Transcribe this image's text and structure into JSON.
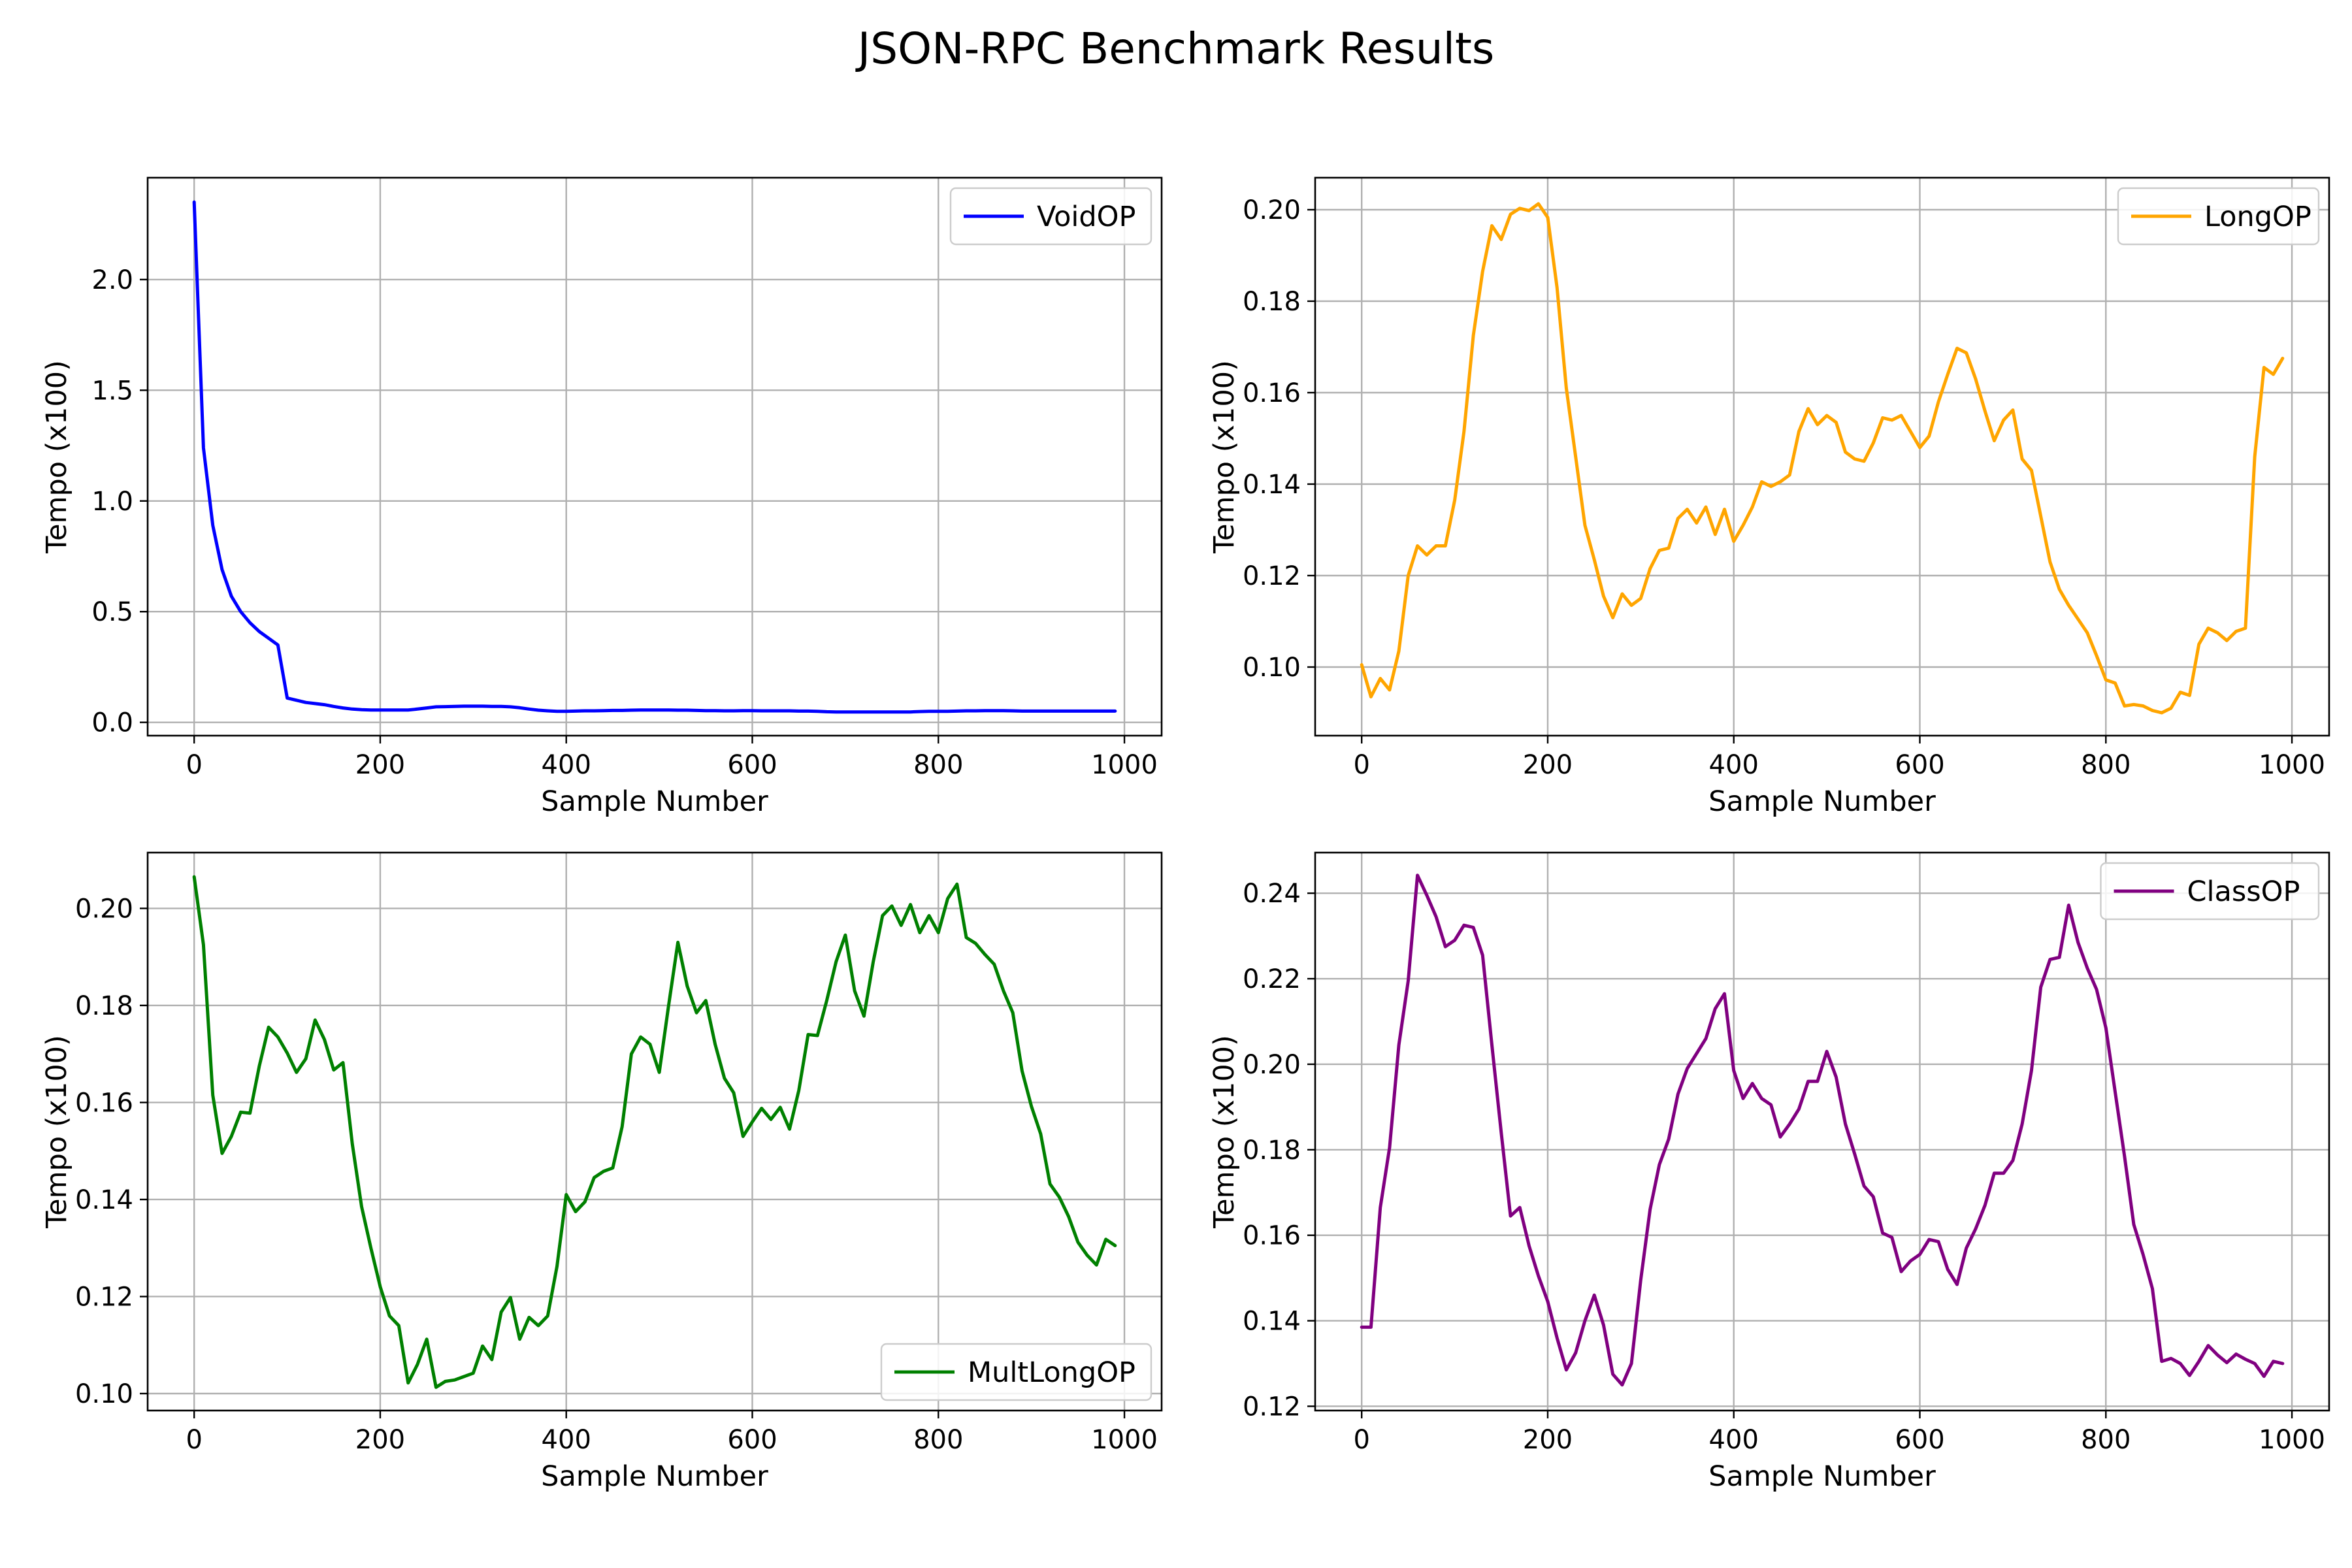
{
  "title": "JSON-RPC Benchmark Results",
  "chart_data": [
    {
      "type": "line",
      "xlabel": "Sample Number",
      "ylabel": "Tempo (x100)",
      "xlim": [
        -50,
        1040
      ],
      "ylim": [
        -0.06,
        2.46
      ],
      "xticks": [
        0,
        200,
        400,
        600,
        800,
        1000
      ],
      "yticks": [
        0.0,
        0.5,
        1.0,
        1.5,
        2.0
      ],
      "ytick_labels": [
        "0.0",
        "0.5",
        "1.0",
        "1.5",
        "2.0"
      ],
      "grid": true,
      "legend": "upper-right",
      "series": [
        {
          "name": "VoidOP",
          "color": "#0000ff",
          "x": [
            0,
            10,
            20,
            30,
            40,
            50,
            60,
            70,
            80,
            90,
            100,
            110,
            120,
            130,
            140,
            150,
            160,
            170,
            180,
            190,
            200,
            210,
            220,
            230,
            240,
            250,
            260,
            270,
            280,
            290,
            300,
            310,
            320,
            330,
            340,
            350,
            360,
            370,
            380,
            390,
            400,
            410,
            420,
            430,
            440,
            450,
            460,
            470,
            480,
            490,
            500,
            510,
            520,
            530,
            540,
            550,
            560,
            570,
            580,
            590,
            600,
            610,
            620,
            630,
            640,
            650,
            660,
            670,
            680,
            690,
            700,
            710,
            720,
            730,
            740,
            750,
            760,
            770,
            780,
            790,
            800,
            810,
            820,
            830,
            840,
            850,
            860,
            870,
            880,
            890,
            900,
            910,
            920,
            930,
            940,
            950,
            960,
            970,
            980,
            990
          ],
          "y": [
            2.35,
            1.24,
            0.89,
            0.69,
            0.57,
            0.5,
            0.45,
            0.41,
            0.38,
            0.35,
            0.11,
            0.1,
            0.09,
            0.085,
            0.08,
            0.072,
            0.065,
            0.06,
            0.057,
            0.056,
            0.056,
            0.056,
            0.056,
            0.056,
            0.06,
            0.065,
            0.07,
            0.071,
            0.072,
            0.073,
            0.073,
            0.073,
            0.072,
            0.072,
            0.07,
            0.066,
            0.06,
            0.055,
            0.052,
            0.05,
            0.05,
            0.051,
            0.052,
            0.052,
            0.053,
            0.054,
            0.054,
            0.055,
            0.056,
            0.056,
            0.056,
            0.056,
            0.055,
            0.055,
            0.054,
            0.053,
            0.053,
            0.052,
            0.052,
            0.053,
            0.053,
            0.052,
            0.052,
            0.052,
            0.052,
            0.051,
            0.051,
            0.05,
            0.048,
            0.047,
            0.047,
            0.047,
            0.047,
            0.047,
            0.047,
            0.047,
            0.047,
            0.047,
            0.049,
            0.05,
            0.05,
            0.05,
            0.051,
            0.052,
            0.052,
            0.053,
            0.053,
            0.053,
            0.052,
            0.051,
            0.051,
            0.051,
            0.051,
            0.051,
            0.051,
            0.051,
            0.051,
            0.051,
            0.051,
            0.051
          ]
        }
      ]
    },
    {
      "type": "line",
      "xlabel": "Sample Number",
      "ylabel": "Tempo (x100)",
      "xlim": [
        -50,
        1040
      ],
      "ylim": [
        0.085,
        0.207
      ],
      "xticks": [
        0,
        200,
        400,
        600,
        800,
        1000
      ],
      "yticks": [
        0.1,
        0.12,
        0.14,
        0.16,
        0.18,
        0.2
      ],
      "ytick_labels": [
        "0.10",
        "0.12",
        "0.14",
        "0.16",
        "0.18",
        "0.20"
      ],
      "grid": true,
      "legend": "upper-right",
      "series": [
        {
          "name": "LongOP",
          "color": "#ffa500",
          "x": [
            0,
            10,
            20,
            30,
            40,
            50,
            60,
            70,
            80,
            90,
            100,
            110,
            120,
            130,
            140,
            150,
            160,
            170,
            180,
            190,
            200,
            210,
            220,
            230,
            240,
            250,
            260,
            270,
            280,
            290,
            300,
            310,
            320,
            330,
            340,
            350,
            360,
            370,
            380,
            390,
            400,
            410,
            420,
            430,
            440,
            450,
            460,
            470,
            480,
            490,
            500,
            510,
            520,
            530,
            540,
            550,
            560,
            570,
            580,
            590,
            600,
            610,
            620,
            630,
            640,
            650,
            660,
            670,
            680,
            690,
            700,
            710,
            720,
            730,
            740,
            750,
            760,
            770,
            780,
            790,
            800,
            810,
            820,
            830,
            840,
            850,
            860,
            870,
            880,
            890,
            900,
            910,
            920,
            930,
            940,
            950,
            960,
            970,
            980,
            990
          ],
          "y": [
            0.1005,
            0.0935,
            0.0975,
            0.095,
            0.1035,
            0.12,
            0.1265,
            0.1245,
            0.1265,
            0.1265,
            0.1365,
            0.1515,
            0.1725,
            0.1865,
            0.1965,
            0.1935,
            0.199,
            0.2003,
            0.1998,
            0.2013,
            0.1983,
            0.183,
            0.161,
            0.146,
            0.131,
            0.1235,
            0.1155,
            0.1108,
            0.116,
            0.1135,
            0.115,
            0.1215,
            0.1255,
            0.126,
            0.1325,
            0.1345,
            0.1315,
            0.135,
            0.129,
            0.1345,
            0.1275,
            0.131,
            0.135,
            0.1405,
            0.1395,
            0.1405,
            0.142,
            0.1515,
            0.1565,
            0.153,
            0.155,
            0.1535,
            0.147,
            0.1455,
            0.145,
            0.149,
            0.1545,
            0.154,
            0.155,
            0.1515,
            0.148,
            0.1505,
            0.158,
            0.164,
            0.1697,
            0.1687,
            0.163,
            0.156,
            0.1495,
            0.154,
            0.1562,
            0.1455,
            0.143,
            0.133,
            0.123,
            0.117,
            0.1135,
            0.1105,
            0.1075,
            0.1025,
            0.0972,
            0.0965,
            0.0915,
            0.0918,
            0.0915,
            0.0905,
            0.09,
            0.091,
            0.0945,
            0.0938,
            0.105,
            0.1085,
            0.1075,
            0.1058,
            0.1078,
            0.1085,
            0.146,
            0.1655,
            0.164,
            0.1675
          ]
        }
      ]
    },
    {
      "type": "line",
      "xlabel": "Sample Number",
      "ylabel": "Tempo (x100)",
      "xlim": [
        -50,
        1040
      ],
      "ylim": [
        0.0965,
        0.2115
      ],
      "xticks": [
        0,
        200,
        400,
        600,
        800,
        1000
      ],
      "yticks": [
        0.1,
        0.12,
        0.14,
        0.16,
        0.18,
        0.2
      ],
      "ytick_labels": [
        "0.10",
        "0.12",
        "0.14",
        "0.16",
        "0.18",
        "0.20"
      ],
      "grid": true,
      "legend": "lower-right",
      "series": [
        {
          "name": "MultLongOP",
          "color": "#008000",
          "x": [
            0,
            10,
            20,
            30,
            40,
            50,
            60,
            70,
            80,
            90,
            100,
            110,
            120,
            130,
            140,
            150,
            160,
            170,
            180,
            190,
            200,
            210,
            220,
            230,
            240,
            250,
            260,
            270,
            280,
            290,
            300,
            310,
            320,
            330,
            340,
            350,
            360,
            370,
            380,
            390,
            400,
            410,
            420,
            430,
            440,
            450,
            460,
            470,
            480,
            490,
            500,
            510,
            520,
            530,
            540,
            550,
            560,
            570,
            580,
            590,
            600,
            610,
            620,
            630,
            640,
            650,
            660,
            670,
            680,
            690,
            700,
            710,
            720,
            730,
            740,
            750,
            760,
            770,
            780,
            790,
            800,
            810,
            820,
            830,
            840,
            850,
            860,
            870,
            880,
            890,
            900,
            910,
            920,
            930,
            940,
            950,
            960,
            970,
            980,
            990
          ],
          "y": [
            0.2065,
            0.1925,
            0.1615,
            0.1495,
            0.153,
            0.158,
            0.1578,
            0.1675,
            0.1755,
            0.1735,
            0.1702,
            0.1662,
            0.169,
            0.177,
            0.173,
            0.1667,
            0.1682,
            0.1515,
            0.1385,
            0.13,
            0.122,
            0.116,
            0.114,
            0.1022,
            0.106,
            0.1112,
            0.1013,
            0.1025,
            0.1028,
            0.1035,
            0.1042,
            0.1098,
            0.107,
            0.1168,
            0.1198,
            0.1112,
            0.1157,
            0.114,
            0.116,
            0.1262,
            0.141,
            0.1375,
            0.1395,
            0.1445,
            0.1458,
            0.1465,
            0.155,
            0.17,
            0.1735,
            0.172,
            0.1662,
            0.18,
            0.193,
            0.184,
            0.1785,
            0.181,
            0.172,
            0.165,
            0.162,
            0.153,
            0.156,
            0.1588,
            0.1565,
            0.159,
            0.1545,
            0.1625,
            0.174,
            0.1738,
            0.181,
            0.189,
            0.1945,
            0.183,
            0.1778,
            0.189,
            0.1985,
            0.2005,
            0.1965,
            0.2008,
            0.195,
            0.1985,
            0.195,
            0.202,
            0.205,
            0.194,
            0.1928,
            0.1905,
            0.1885,
            0.183,
            0.1785,
            0.1665,
            0.1592,
            0.1535,
            0.1432,
            0.1405,
            0.1365,
            0.1312,
            0.1285,
            0.1265,
            0.1318,
            0.1305
          ]
        }
      ]
    },
    {
      "type": "line",
      "xlabel": "Sample Number",
      "ylabel": "Tempo (x100)",
      "xlim": [
        -50,
        1040
      ],
      "ylim": [
        0.119,
        0.2495
      ],
      "xticks": [
        0,
        200,
        400,
        600,
        800,
        1000
      ],
      "yticks": [
        0.12,
        0.14,
        0.16,
        0.18,
        0.2,
        0.22,
        0.24
      ],
      "ytick_labels": [
        "0.12",
        "0.14",
        "0.16",
        "0.18",
        "0.20",
        "0.22",
        "0.24"
      ],
      "grid": true,
      "legend": "upper-right",
      "series": [
        {
          "name": "ClassOP",
          "color": "#800080",
          "x": [
            0,
            10,
            20,
            30,
            40,
            50,
            60,
            70,
            80,
            90,
            100,
            110,
            120,
            130,
            140,
            150,
            160,
            170,
            180,
            190,
            200,
            210,
            220,
            230,
            240,
            250,
            260,
            270,
            280,
            290,
            300,
            310,
            320,
            330,
            340,
            350,
            360,
            370,
            380,
            390,
            400,
            410,
            420,
            430,
            440,
            450,
            460,
            470,
            480,
            490,
            500,
            510,
            520,
            530,
            540,
            550,
            560,
            570,
            580,
            590,
            600,
            610,
            620,
            630,
            640,
            650,
            660,
            670,
            680,
            690,
            700,
            710,
            720,
            730,
            740,
            750,
            760,
            770,
            780,
            790,
            800,
            810,
            820,
            830,
            840,
            850,
            860,
            870,
            880,
            890,
            900,
            910,
            920,
            930,
            940,
            950,
            960,
            970,
            980,
            990
          ],
          "y": [
            0.1385,
            0.1385,
            0.1665,
            0.1805,
            0.2045,
            0.2195,
            0.2442,
            0.2395,
            0.2345,
            0.2275,
            0.229,
            0.2325,
            0.232,
            0.2255,
            0.2045,
            0.184,
            0.1645,
            0.1665,
            0.1575,
            0.1505,
            0.1445,
            0.136,
            0.1285,
            0.1325,
            0.14,
            0.146,
            0.139,
            0.1275,
            0.125,
            0.13,
            0.1495,
            0.166,
            0.1765,
            0.1825,
            0.193,
            0.199,
            0.2025,
            0.206,
            0.213,
            0.2165,
            0.1985,
            0.192,
            0.1955,
            0.192,
            0.1905,
            0.183,
            0.186,
            0.1895,
            0.196,
            0.196,
            0.203,
            0.197,
            0.186,
            0.179,
            0.1715,
            0.169,
            0.1605,
            0.1595,
            0.1515,
            0.154,
            0.1555,
            0.159,
            0.1585,
            0.152,
            0.1485,
            0.157,
            0.1615,
            0.167,
            0.1745,
            0.1745,
            0.1775,
            0.186,
            0.1985,
            0.218,
            0.2245,
            0.225,
            0.2372,
            0.2285,
            0.2225,
            0.2175,
            0.2085,
            0.1935,
            0.1785,
            0.1625,
            0.1555,
            0.1475,
            0.1305,
            0.1312,
            0.13,
            0.1272,
            0.1305,
            0.1342,
            0.132,
            0.1302,
            0.1322,
            0.131,
            0.13,
            0.127,
            0.1305,
            0.13
          ]
        }
      ]
    }
  ]
}
